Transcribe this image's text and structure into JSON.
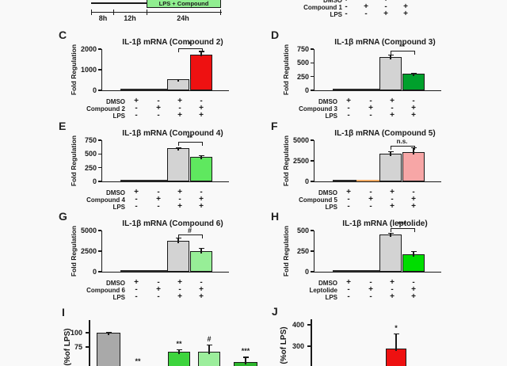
{
  "figure": {
    "background": "#f9f9f9",
    "ink": "#1a1a1a",
    "gray_bar": "#d3d3d3"
  },
  "timeline": {
    "box_label": "LPS + Compound",
    "box_color": "#90ee90",
    "segment_labels": [
      "8h",
      "12h",
      "24h"
    ]
  },
  "panel_b": {
    "rows": [
      {
        "label": "DMSO",
        "signs": [
          "+",
          "-",
          "+",
          "-"
        ]
      },
      {
        "label": "Compound 1",
        "signs": [
          "-",
          "+",
          "-",
          "+"
        ]
      },
      {
        "label": "LPS",
        "signs": [
          "-",
          "-",
          "+",
          "+"
        ]
      }
    ]
  },
  "chart_data": [
    {
      "id": "C",
      "type": "bar",
      "title": "IL-1β mRNA (Compound 2)",
      "ylabel": "Fold Regulation",
      "yticks": [
        0,
        1000,
        2000
      ],
      "ymax": 2000,
      "sig": "*",
      "bars": [
        {
          "value": 30,
          "err": 0,
          "color": "#2a2a2a"
        },
        {
          "value": 18,
          "err": 0,
          "color": "#2a2a2a"
        },
        {
          "value": 520,
          "err": 35,
          "color": "#d3d3d3"
        },
        {
          "value": 1750,
          "err": 160,
          "color": "#ee1111"
        }
      ],
      "rows": [
        {
          "label": "DMSO",
          "signs": [
            "+",
            "-",
            "+",
            "-"
          ]
        },
        {
          "label": "Compound 2",
          "signs": [
            "-",
            "+",
            "-",
            "+"
          ]
        },
        {
          "label": "LPS",
          "signs": [
            "-",
            "-",
            "+",
            "+"
          ]
        }
      ]
    },
    {
      "id": "D",
      "type": "bar",
      "title": "IL-1β mRNA (Compound 3)",
      "ylabel": "Fold Regulation",
      "yticks": [
        0,
        250,
        500,
        750
      ],
      "ymax": 750,
      "sig": "**",
      "bars": [
        {
          "value": 15,
          "err": 0,
          "color": "#2a2a2a"
        },
        {
          "value": 10,
          "err": 0,
          "color": "#2a2a2a"
        },
        {
          "value": 610,
          "err": 45,
          "color": "#d3d3d3"
        },
        {
          "value": 300,
          "err": 20,
          "color": "#00a02c"
        }
      ],
      "rows": [
        {
          "label": "DMSO",
          "signs": [
            "+",
            "-",
            "+",
            "-"
          ]
        },
        {
          "label": "Compound 3",
          "signs": [
            "-",
            "+",
            "-",
            "+"
          ]
        },
        {
          "label": "LPS",
          "signs": [
            "-",
            "-",
            "+",
            "+"
          ]
        }
      ]
    },
    {
      "id": "E",
      "type": "bar",
      "title": "IL-1β mRNA (Compound 4)",
      "ylabel": "Fold Regulation",
      "yticks": [
        0,
        250,
        500,
        750
      ],
      "ymax": 750,
      "sig": "**",
      "bars": [
        {
          "value": 12,
          "err": 0,
          "color": "#2a2a2a"
        },
        {
          "value": 8,
          "err": 0,
          "color": "#2a2a2a"
        },
        {
          "value": 605,
          "err": 18,
          "color": "#d3d3d3"
        },
        {
          "value": 450,
          "err": 25,
          "color": "#5fe85f"
        }
      ],
      "rows": [
        {
          "label": "DMSO",
          "signs": [
            "+",
            "-",
            "+",
            "-"
          ]
        },
        {
          "label": "Compound 4",
          "signs": [
            "-",
            "+",
            "-",
            "+"
          ]
        },
        {
          "label": "LPS",
          "signs": [
            "-",
            "-",
            "+",
            "+"
          ]
        }
      ]
    },
    {
      "id": "F",
      "type": "bar",
      "title": "IL-1β mRNA (Compound 5)",
      "ylabel": "Fold Regulation",
      "yticks": [
        0,
        2500,
        5000
      ],
      "ymax": 5000,
      "sig": "n.s.",
      "bars": [
        {
          "value": 70,
          "err": 0,
          "color": "#2a2a2a"
        },
        {
          "value": 70,
          "err": 0,
          "color": "#f0a860"
        },
        {
          "value": 3400,
          "err": 280,
          "color": "#d3d3d3"
        },
        {
          "value": 3550,
          "err": 620,
          "color": "#f7a6a6"
        }
      ],
      "rows": [
        {
          "label": "DMSO",
          "signs": [
            "+",
            "-",
            "+",
            "-"
          ]
        },
        {
          "label": "Compound 5",
          "signs": [
            "-",
            "+",
            "-",
            "+"
          ]
        },
        {
          "label": "LPS",
          "signs": [
            "-",
            "-",
            "+",
            "+"
          ]
        }
      ]
    },
    {
      "id": "G",
      "type": "bar",
      "title": "IL-1β mRNA (Compound 6)",
      "ylabel": "Fold Regulation",
      "yticks": [
        0,
        2500,
        5000
      ],
      "ymax": 5000,
      "sig": "#",
      "bars": [
        {
          "value": 60,
          "err": 0,
          "color": "#2a2a2a"
        },
        {
          "value": 40,
          "err": 0,
          "color": "#2a2a2a"
        },
        {
          "value": 3750,
          "err": 380,
          "color": "#d3d3d3"
        },
        {
          "value": 2500,
          "err": 420,
          "color": "#97ee97"
        }
      ],
      "rows": [
        {
          "label": "DMSO",
          "signs": [
            "+",
            "-",
            "+",
            "-"
          ]
        },
        {
          "label": "Compound 6",
          "signs": [
            "-",
            "+",
            "-",
            "+"
          ]
        },
        {
          "label": "LPS",
          "signs": [
            "-",
            "-",
            "+",
            "+"
          ]
        }
      ]
    },
    {
      "id": "H",
      "type": "bar",
      "title": "IL-1β mRNA (leptolide)",
      "ylabel": "Fold Regulation",
      "yticks": [
        0,
        250,
        500
      ],
      "ymax": 500,
      "sig": "***",
      "bars": [
        {
          "value": 8,
          "err": 0,
          "color": "#2a2a2a"
        },
        {
          "value": 6,
          "err": 0,
          "color": "#2a2a2a"
        },
        {
          "value": 450,
          "err": 22,
          "color": "#d3d3d3"
        },
        {
          "value": 215,
          "err": 35,
          "color": "#00dd00"
        }
      ],
      "rows": [
        {
          "label": "DMSO",
          "signs": [
            "+",
            "-",
            "+",
            "-"
          ]
        },
        {
          "label": "Leptolide",
          "signs": [
            "-",
            "+",
            "-",
            "+"
          ]
        },
        {
          "label": "LPS",
          "signs": [
            "-",
            "-",
            "+",
            "+"
          ]
        }
      ]
    },
    {
      "id": "I",
      "type": "bar",
      "title": "",
      "ylabel": "(%of LPS)",
      "yticks_visible": [
        100,
        75
      ],
      "note": "clipped at image bottom",
      "bars": [
        {
          "value": 100,
          "err": 2,
          "color": "#a9a9a9",
          "sig": ""
        },
        {
          "value": null,
          "err": null,
          "color": null,
          "sig": "**"
        },
        {
          "value": 67,
          "err": 4,
          "color": "#3dd43d",
          "sig": "**"
        },
        {
          "value": 66,
          "err": 13,
          "color": "#9cee9c",
          "sig": "#"
        },
        {
          "value": 49,
          "err": 9,
          "color": "#2cb52c",
          "sig": "***"
        }
      ]
    },
    {
      "id": "J",
      "type": "bar",
      "title": "",
      "ylabel": "(%of LPS)",
      "yticks_visible": [
        400,
        300
      ],
      "note": "clipped at image bottom",
      "bars": [
        {
          "value": 290,
          "err": 70,
          "color": "#ee1111",
          "sig": "*"
        }
      ]
    }
  ]
}
